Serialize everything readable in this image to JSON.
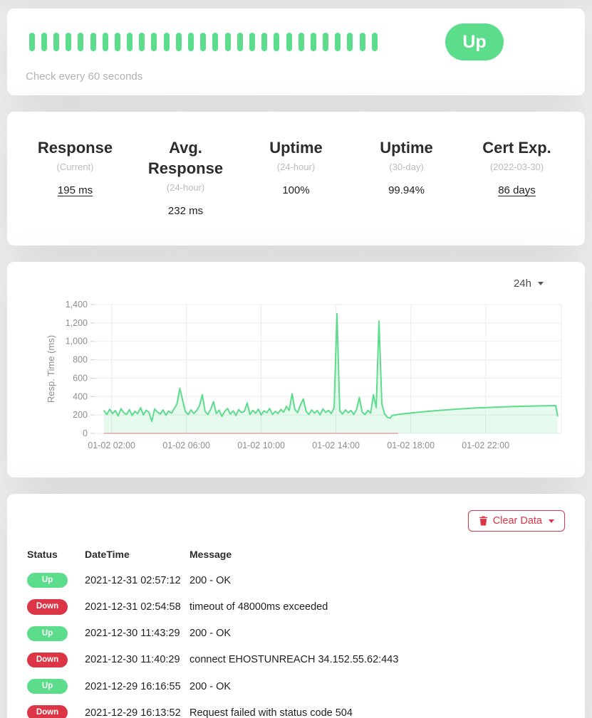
{
  "monitor": {
    "status_label": "Up",
    "interval_text": "Check every 60 seconds",
    "heartbeat_bar_count": 29
  },
  "stats": [
    {
      "title": "Response",
      "subtitle": "(Current)",
      "value": "195 ms",
      "underline": true
    },
    {
      "title": "Avg. Response",
      "subtitle": "(24-hour)",
      "value": "232 ms",
      "underline": false
    },
    {
      "title": "Uptime",
      "subtitle": "(24-hour)",
      "value": "100%",
      "underline": false
    },
    {
      "title": "Uptime",
      "subtitle": "(30-day)",
      "value": "99.94%",
      "underline": false
    },
    {
      "title": "Cert Exp.",
      "subtitle": "(2022-03-30)",
      "value": "86 days",
      "underline": true
    }
  ],
  "chart_card": {
    "period_label": "24h"
  },
  "chart_data": {
    "type": "line",
    "title": "",
    "xlabel": "",
    "ylabel": "Resp. Time (ms)",
    "ylim": [
      0,
      1400
    ],
    "yticks": [
      0,
      200,
      400,
      600,
      800,
      1000,
      1200,
      1400
    ],
    "xlim_hours": [
      1.1,
      26.05
    ],
    "xticks": [
      {
        "hour": 2,
        "label": "01-02 02:00"
      },
      {
        "hour": 6,
        "label": "01-02 06:00"
      },
      {
        "hour": 10,
        "label": "01-02 10:00"
      },
      {
        "hour": 14,
        "label": "01-02 14:00"
      },
      {
        "hour": 18,
        "label": "01-02 18:00"
      },
      {
        "hour": 22,
        "label": "01-02 22:00"
      }
    ],
    "grid": true,
    "legend": false,
    "series": [
      {
        "name": "resp_time",
        "color": "#5cdd8b",
        "fill": "rgba(92,221,139,0.15)",
        "width": 2,
        "points": [
          [
            1.6,
            245
          ],
          [
            1.75,
            205
          ],
          [
            1.9,
            262
          ],
          [
            2.05,
            215
          ],
          [
            2.2,
            248
          ],
          [
            2.35,
            190
          ],
          [
            2.5,
            268
          ],
          [
            2.65,
            225
          ],
          [
            2.8,
            205
          ],
          [
            2.95,
            258
          ],
          [
            3.1,
            195
          ],
          [
            3.25,
            240
          ],
          [
            3.4,
            215
          ],
          [
            3.55,
            278
          ],
          [
            3.7,
            200
          ],
          [
            3.85,
            252
          ],
          [
            4.0,
            228
          ],
          [
            4.15,
            130
          ],
          [
            4.3,
            265
          ],
          [
            4.45,
            232
          ],
          [
            4.6,
            210
          ],
          [
            4.75,
            255
          ],
          [
            4.9,
            198
          ],
          [
            5.05,
            242
          ],
          [
            5.2,
            220
          ],
          [
            5.35,
            270
          ],
          [
            5.5,
            320
          ],
          [
            5.65,
            490
          ],
          [
            5.8,
            360
          ],
          [
            5.95,
            235
          ],
          [
            6.1,
            205
          ],
          [
            6.25,
            255
          ],
          [
            6.4,
            215
          ],
          [
            6.55,
            248
          ],
          [
            6.7,
            300
          ],
          [
            6.85,
            420
          ],
          [
            7.0,
            240
          ],
          [
            7.15,
            205
          ],
          [
            7.3,
            262
          ],
          [
            7.45,
            345
          ],
          [
            7.6,
            215
          ],
          [
            7.75,
            252
          ],
          [
            7.9,
            185
          ],
          [
            8.05,
            240
          ],
          [
            8.2,
            270
          ],
          [
            8.35,
            210
          ],
          [
            8.5,
            245
          ],
          [
            8.65,
            195
          ],
          [
            8.8,
            258
          ],
          [
            8.95,
            225
          ],
          [
            9.1,
            240
          ],
          [
            9.25,
            330
          ],
          [
            9.4,
            205
          ],
          [
            9.55,
            250
          ],
          [
            9.7,
            218
          ],
          [
            9.85,
            262
          ],
          [
            10.0,
            200
          ],
          [
            10.15,
            245
          ],
          [
            10.3,
            225
          ],
          [
            10.45,
            270
          ],
          [
            10.6,
            205
          ],
          [
            10.75,
            240
          ],
          [
            10.9,
            215
          ],
          [
            11.05,
            260
          ],
          [
            11.2,
            230
          ],
          [
            11.35,
            295
          ],
          [
            11.5,
            250
          ],
          [
            11.65,
            430
          ],
          [
            11.8,
            260
          ],
          [
            11.95,
            225
          ],
          [
            12.1,
            310
          ],
          [
            12.25,
            375
          ],
          [
            12.4,
            240
          ],
          [
            12.55,
            205
          ],
          [
            12.7,
            255
          ],
          [
            12.85,
            220
          ],
          [
            13.0,
            248
          ],
          [
            13.15,
            200
          ],
          [
            13.3,
            265
          ],
          [
            13.45,
            228
          ],
          [
            13.6,
            250
          ],
          [
            13.75,
            215
          ],
          [
            13.9,
            280
          ],
          [
            14.05,
            1300
          ],
          [
            14.2,
            245
          ],
          [
            14.35,
            210
          ],
          [
            14.5,
            255
          ],
          [
            14.65,
            225
          ],
          [
            14.8,
            248
          ],
          [
            14.95,
            205
          ],
          [
            15.1,
            260
          ],
          [
            15.25,
            390
          ],
          [
            15.4,
            230
          ],
          [
            15.55,
            205
          ],
          [
            15.7,
            250
          ],
          [
            15.85,
            220
          ],
          [
            16.0,
            420
          ],
          [
            16.15,
            280
          ],
          [
            16.3,
            1220
          ],
          [
            16.45,
            320
          ],
          [
            16.6,
            210
          ],
          [
            16.75,
            175
          ],
          [
            16.9,
            165
          ],
          [
            17.0,
            195
          ],
          [
            17.5,
            210
          ],
          [
            18.5,
            232
          ],
          [
            19.5,
            250
          ],
          [
            20.5,
            264
          ],
          [
            21.5,
            276
          ],
          [
            22.5,
            285
          ],
          [
            23.5,
            292
          ],
          [
            24.5,
            297
          ],
          [
            25.3,
            300
          ],
          [
            25.75,
            302
          ],
          [
            25.85,
            190
          ]
        ]
      },
      {
        "name": "down_baseline",
        "color": "rgba(220,53,69,0.5)",
        "width": 1.2,
        "points": [
          [
            1.6,
            0
          ],
          [
            17.3,
            0
          ]
        ]
      }
    ]
  },
  "events": {
    "clear_button_label": "Clear Data",
    "columns": [
      "Status",
      "DateTime",
      "Message"
    ],
    "rows": [
      {
        "status": "Up",
        "datetime": "2021-12-31 02:57:12",
        "message": "200 - OK"
      },
      {
        "status": "Down",
        "datetime": "2021-12-31 02:54:58",
        "message": "timeout of 48000ms exceeded"
      },
      {
        "status": "Up",
        "datetime": "2021-12-30 11:43:29",
        "message": "200 - OK"
      },
      {
        "status": "Down",
        "datetime": "2021-12-30 11:40:29",
        "message": "connect EHOSTUNREACH 34.152.55.62:443"
      },
      {
        "status": "Up",
        "datetime": "2021-12-29 16:16:55",
        "message": "200 - OK"
      },
      {
        "status": "Down",
        "datetime": "2021-12-29 16:13:52",
        "message": "Request failed with status code 504"
      }
    ]
  },
  "colors": {
    "up_green": "#5cdd8b",
    "down_red": "#dc3545",
    "chart_grid": "#ececec",
    "axis_text": "#8e8e8e"
  }
}
